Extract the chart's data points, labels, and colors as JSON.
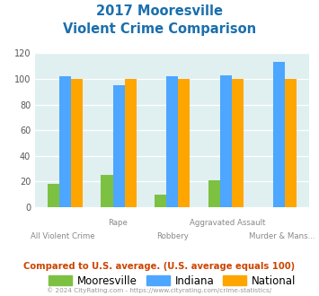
{
  "title_line1": "2017 Mooresville",
  "title_line2": "Violent Crime Comparison",
  "categories": [
    "All Violent Crime",
    "Rape",
    "Robbery",
    "Aggravated Assault",
    "Murder & Mans..."
  ],
  "mooresville": [
    18,
    25,
    10,
    21,
    0
  ],
  "indiana": [
    102,
    95,
    102,
    103,
    113
  ],
  "national": [
    100,
    100,
    100,
    100,
    100
  ],
  "mooresville_color": "#7dc142",
  "indiana_color": "#4da6ff",
  "national_color": "#ffa500",
  "title_color": "#1a6fad",
  "bg_color": "#e0eff0",
  "ylim": [
    0,
    120
  ],
  "yticks": [
    0,
    20,
    40,
    60,
    80,
    100,
    120
  ],
  "footnote": "Compared to U.S. average. (U.S. average equals 100)",
  "copyright": "© 2024 CityRating.com - https://www.cityrating.com/crime-statistics/",
  "footnote_color": "#cc4400",
  "copyright_color": "#999999",
  "legend_labels": [
    "Mooresville",
    "Indiana",
    "National"
  ]
}
